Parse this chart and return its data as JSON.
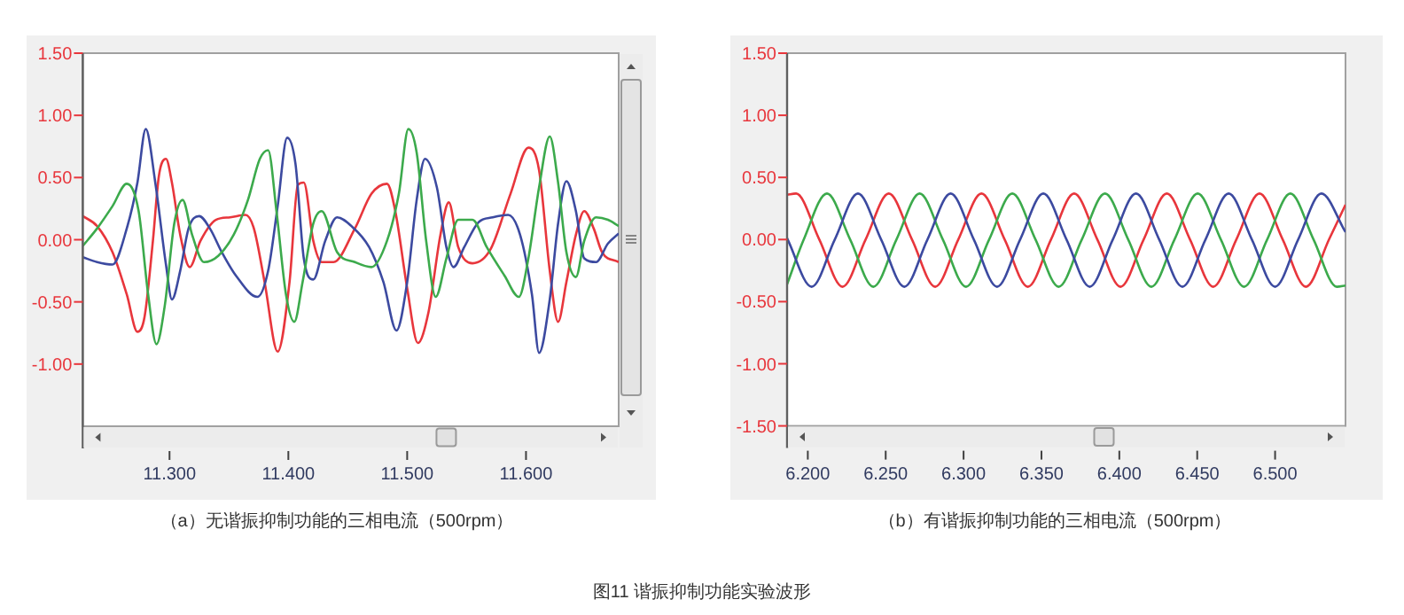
{
  "chart_data": [
    {
      "type": "line",
      "title": "（a）无谐振抑制功能的三相电流（500rpm）",
      "xlim": [
        11.227,
        11.678
      ],
      "ylim": [
        -1.5,
        1.5
      ],
      "xticks": [
        {
          "value": 11.3,
          "label": "11.300"
        },
        {
          "value": 11.4,
          "label": "11.400"
        },
        {
          "value": 11.5,
          "label": "11.500"
        },
        {
          "value": 11.6,
          "label": "11.600"
        }
      ],
      "yticks": [
        {
          "value": 1.5,
          "label": "1.50"
        },
        {
          "value": 1.0,
          "label": "1.00"
        },
        {
          "value": 0.5,
          "label": "0.50"
        },
        {
          "value": 0,
          "label": "0.00"
        },
        {
          "value": -0.5,
          "label": "-0.50"
        },
        {
          "value": -1.0,
          "label": "-1.00"
        }
      ],
      "series": [
        {
          "color": "#e8363c",
          "x": [
            11.227,
            11.239,
            11.252,
            11.264,
            11.273,
            11.279,
            11.286,
            11.291,
            11.297,
            11.302,
            11.309,
            11.317,
            11.326,
            11.339,
            11.351,
            11.364,
            11.371,
            11.38,
            11.391,
            11.401,
            11.408,
            11.413,
            11.421,
            11.428,
            11.438,
            11.456,
            11.47,
            11.483,
            11.49,
            11.5,
            11.509,
            11.518,
            11.528,
            11.535,
            11.543,
            11.555,
            11.57,
            11.587,
            11.602,
            11.611,
            11.62,
            11.627,
            11.634,
            11.642,
            11.649,
            11.657,
            11.664,
            11.678
          ],
          "values": [
            0.19,
            0.11,
            -0.1,
            -0.44,
            -0.74,
            -0.62,
            -0.01,
            0.51,
            0.65,
            0.46,
            0.04,
            -0.22,
            -0.01,
            0.16,
            0.18,
            0.2,
            0.09,
            -0.34,
            -0.9,
            -0.34,
            0.44,
            0.46,
            -0.01,
            -0.18,
            -0.18,
            0.09,
            0.37,
            0.45,
            0.23,
            -0.39,
            -0.83,
            -0.58,
            0.04,
            0.3,
            -0.06,
            -0.19,
            -0.08,
            0.37,
            0.74,
            0.56,
            -0.25,
            -0.66,
            -0.34,
            0.04,
            0.23,
            0.09,
            -0.1,
            -0.18
          ]
        },
        {
          "color": "#3c4aa0",
          "x": [
            11.227,
            11.239,
            11.252,
            11.264,
            11.273,
            11.28,
            11.288,
            11.297,
            11.302,
            11.309,
            11.316,
            11.325,
            11.334,
            11.344,
            11.356,
            11.374,
            11.383,
            11.391,
            11.399,
            11.406,
            11.413,
            11.421,
            11.431,
            11.441,
            11.453,
            11.468,
            11.48,
            11.491,
            11.5,
            11.508,
            11.515,
            11.525,
            11.533,
            11.539,
            11.548,
            11.56,
            11.572,
            11.585,
            11.595,
            11.605,
            11.611,
            11.62,
            11.627,
            11.634,
            11.642,
            11.649,
            11.659,
            11.669,
            11.678
          ],
          "values": [
            -0.14,
            -0.18,
            -0.2,
            0.09,
            0.46,
            0.89,
            0.46,
            -0.2,
            -0.48,
            -0.25,
            0.09,
            0.19,
            0.09,
            -0.1,
            -0.29,
            -0.46,
            -0.25,
            0.27,
            0.82,
            0.61,
            -0.15,
            -0.32,
            -0.01,
            0.18,
            0.11,
            -0.06,
            -0.34,
            -0.73,
            -0.34,
            0.32,
            0.65,
            0.42,
            -0.06,
            -0.22,
            -0.06,
            0.14,
            0.18,
            0.2,
            0.04,
            -0.44,
            -0.91,
            -0.48,
            0.13,
            0.47,
            0.23,
            -0.15,
            -0.18,
            -0.03,
            0.05
          ]
        },
        {
          "color": "#3caa4c",
          "x": [
            11.227,
            11.239,
            11.252,
            11.264,
            11.274,
            11.282,
            11.289,
            11.296,
            11.304,
            11.311,
            11.319,
            11.329,
            11.341,
            11.354,
            11.366,
            11.376,
            11.383,
            11.39,
            11.398,
            11.405,
            11.412,
            11.421,
            11.428,
            11.441,
            11.456,
            11.47,
            11.483,
            11.493,
            11.501,
            11.508,
            11.516,
            11.524,
            11.533,
            11.543,
            11.555,
            11.567,
            11.582,
            11.594,
            11.602,
            11.611,
            11.62,
            11.627,
            11.634,
            11.642,
            11.649,
            11.659,
            11.669,
            11.678
          ],
          "values": [
            -0.05,
            0.09,
            0.27,
            0.45,
            0.23,
            -0.44,
            -0.84,
            -0.53,
            0.13,
            0.32,
            0.04,
            -0.18,
            -0.13,
            0.04,
            0.32,
            0.65,
            0.72,
            0.23,
            -0.44,
            -0.66,
            -0.34,
            0.13,
            0.23,
            -0.1,
            -0.18,
            -0.22,
            -0.01,
            0.37,
            0.89,
            0.7,
            -0.01,
            -0.46,
            -0.15,
            0.16,
            0.16,
            -0.06,
            -0.29,
            -0.46,
            -0.15,
            0.42,
            0.83,
            0.46,
            -0.1,
            -0.3,
            -0.01,
            0.18,
            0.16,
            0.11
          ]
        }
      ]
    },
    {
      "type": "line",
      "title": "（b）有谐振抑制功能的三相电流（500rpm）",
      "xlim": [
        6.1867,
        6.5452
      ],
      "ylim": [
        -1.5,
        1.5
      ],
      "xticks": [
        {
          "value": 6.2,
          "label": "6.200"
        },
        {
          "value": 6.25,
          "label": "6.250"
        },
        {
          "value": 6.3,
          "label": "6.300"
        },
        {
          "value": 6.35,
          "label": "6.350"
        },
        {
          "value": 6.4,
          "label": "6.400"
        },
        {
          "value": 6.45,
          "label": "6.450"
        },
        {
          "value": 6.5,
          "label": "6.500"
        }
      ],
      "yticks": [
        {
          "value": 1.5,
          "label": "1.50"
        },
        {
          "value": 1.0,
          "label": "1.00"
        },
        {
          "value": 0.5,
          "label": "0.50"
        },
        {
          "value": 0,
          "label": "0.00"
        },
        {
          "value": -0.5,
          "label": "-0.50"
        },
        {
          "value": -1.0,
          "label": "-1.00"
        },
        {
          "value": -1.5,
          "label": "-1.50"
        }
      ],
      "annotations": [
        "图11 谐振抑制功能实验波形"
      ],
      "series": [
        {
          "color": "#e8363c",
          "x": [
            6.1867,
            6.1925,
            6.2074,
            6.2223,
            6.2371,
            6.252,
            6.2669,
            6.2818,
            6.2966,
            6.3115,
            6.3264,
            6.3413,
            6.3561,
            6.371,
            6.3859,
            6.4008,
            6.4156,
            6.4305,
            6.4454,
            6.4603,
            6.4751,
            6.49,
            6.5049,
            6.5198,
            6.5346,
            6.5452
          ],
          "values": [
            0.36,
            0.37,
            0,
            -0.38,
            0,
            0.37,
            0,
            -0.38,
            0,
            0.37,
            0,
            -0.38,
            0,
            0.37,
            0,
            -0.38,
            0,
            0.37,
            0,
            -0.38,
            0,
            0.37,
            0,
            -0.38,
            0,
            0.28
          ]
        },
        {
          "color": "#3caa4c",
          "x": [
            6.1867,
            6.1974,
            6.2123,
            6.2272,
            6.2421,
            6.2569,
            6.2718,
            6.2867,
            6.3016,
            6.3164,
            6.3313,
            6.3462,
            6.3611,
            6.3759,
            6.3908,
            6.4057,
            6.4206,
            6.4354,
            6.4503,
            6.4652,
            6.4801,
            6.4949,
            6.5098,
            6.5247,
            6.5396,
            6.5452
          ],
          "values": [
            -0.36,
            0,
            0.37,
            0,
            -0.38,
            0,
            0.37,
            0,
            -0.38,
            0,
            0.37,
            0,
            -0.38,
            0,
            0.37,
            0,
            -0.38,
            0,
            0.37,
            0,
            -0.38,
            0,
            0.37,
            0,
            -0.38,
            -0.37
          ]
        },
        {
          "color": "#3c4aa0",
          "x": [
            6.1867,
            6.2025,
            6.2173,
            6.2322,
            6.2471,
            6.262,
            6.2768,
            6.2917,
            6.3066,
            6.3215,
            6.3363,
            6.3512,
            6.3661,
            6.381,
            6.3958,
            6.4107,
            6.4256,
            6.4405,
            6.4553,
            6.4702,
            6.4851,
            6.5,
            6.5148,
            6.5297,
            6.5452
          ],
          "values": [
            0.01,
            -0.38,
            0,
            0.37,
            0,
            -0.38,
            0,
            0.37,
            0,
            -0.38,
            0,
            0.37,
            0,
            -0.38,
            0,
            0.37,
            0,
            -0.38,
            0,
            0.37,
            0,
            -0.38,
            0,
            0.37,
            0.06
          ]
        }
      ]
    }
  ]
}
